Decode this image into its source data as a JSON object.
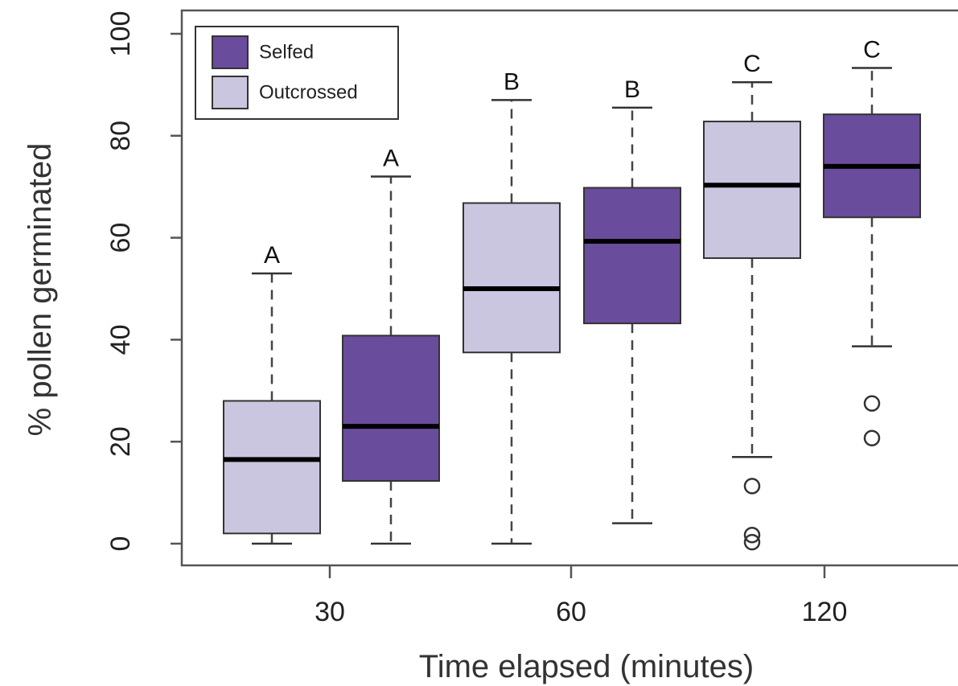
{
  "chart_data": {
    "type": "boxplot",
    "xlabel": "Time elapsed (minutes)",
    "ylabel": "% pollen germinated",
    "ylim": [
      0,
      100
    ],
    "yticks": [
      0,
      20,
      40,
      60,
      80,
      100
    ],
    "categories": [
      "30",
      "60",
      "120"
    ],
    "legend": {
      "position": "top-left",
      "entries": [
        {
          "name": "Selfed",
          "color": "#6a4c9c"
        },
        {
          "name": "Outcrossed",
          "color": "#cbc6df"
        }
      ]
    },
    "series": [
      {
        "name": "Outcrossed",
        "color": "#cbc6df",
        "category": "30",
        "min": 0,
        "q1": 2,
        "median": 16.5,
        "q3": 28,
        "max": 53,
        "outliers": [],
        "letter": "A"
      },
      {
        "name": "Selfed",
        "color": "#6a4c9c",
        "category": "30",
        "min": 0,
        "q1": 12.3,
        "median": 23,
        "q3": 40.8,
        "max": 72,
        "outliers": [],
        "letter": "A"
      },
      {
        "name": "Outcrossed",
        "color": "#cbc6df",
        "category": "60",
        "min": 0,
        "q1": 37.5,
        "median": 50,
        "q3": 66.8,
        "max": 87,
        "outliers": [],
        "letter": "B"
      },
      {
        "name": "Selfed",
        "color": "#6a4c9c",
        "category": "60",
        "min": 4,
        "q1": 43.2,
        "median": 59.3,
        "q3": 69.8,
        "max": 85.5,
        "outliers": [],
        "letter": "B"
      },
      {
        "name": "Outcrossed",
        "color": "#cbc6df",
        "category": "120",
        "min": 17,
        "q1": 56,
        "median": 70.3,
        "q3": 82.8,
        "max": 90.5,
        "outliers": [
          11.3,
          1.7,
          0.3
        ],
        "letter": "C"
      },
      {
        "name": "Selfed",
        "color": "#6a4c9c",
        "category": "120",
        "min": 38.7,
        "q1": 64,
        "median": 74,
        "q3": 84.2,
        "max": 93.3,
        "outliers": [
          27.5,
          20.7
        ],
        "letter": "C"
      }
    ]
  }
}
